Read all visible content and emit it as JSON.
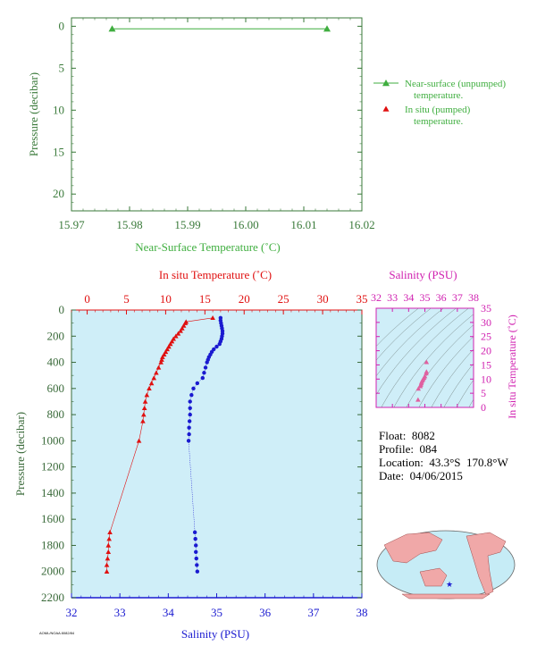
{
  "colors": {
    "top_axis": "#3a7a3a",
    "top_label": "#3fae3f",
    "temp": "#e01010",
    "salinity": "#1a1ad0",
    "magenta": "#d020b0",
    "ts_points": "#e060a0",
    "panel_bg": "#cfeef8",
    "main_axis": "#3a6a3a"
  },
  "metadata": {
    "float_label": "Float:",
    "float_value": "8082",
    "profile_label": "Profile:",
    "profile_value": "084",
    "location_label": "Location:",
    "location_value": "43.3°S  170.8°W",
    "date_label": "Date:",
    "date_value": "04/06/2015",
    "footer_code": "AOML/NOAA 8082/84"
  },
  "chart_data": [
    {
      "type": "line",
      "name": "near-surface",
      "xlabel": "Near-Surface Temperature (˚C)",
      "ylabel": "Pressure (decibar)",
      "xlim": [
        15.97,
        16.02
      ],
      "ylim": [
        22,
        -1
      ],
      "xticks": [
        "15.97",
        "15.98",
        "15.99",
        "16.00",
        "16.01",
        "16.02"
      ],
      "yticks": [
        "0",
        "5",
        "10",
        "15",
        "20"
      ],
      "series": [
        {
          "name": "Near-surface (unpumped) temperature.",
          "x": [
            15.977,
            16.014
          ],
          "y": [
            0.3,
            0.3
          ]
        }
      ],
      "legend": [
        {
          "line1": "Near-surface (unpumped)",
          "line2": "temperature."
        },
        {
          "line1": "In situ (pumped)",
          "line2": "temperature."
        }
      ]
    },
    {
      "type": "line",
      "name": "profile",
      "xlabel_top": "In situ Temperature (˚C)",
      "xlabel_bottom": "Salinity (PSU)",
      "ylabel": "Pressure (decibar)",
      "temp_lim": [
        -2,
        35
      ],
      "sal_lim": [
        32,
        38
      ],
      "ylim": [
        2200,
        0
      ],
      "temp_ticks": [
        "0",
        "5",
        "10",
        "15",
        "20",
        "25",
        "30",
        "35"
      ],
      "sal_ticks": [
        "32",
        "33",
        "34",
        "35",
        "36",
        "37",
        "38"
      ],
      "yticks": [
        "0",
        "200",
        "400",
        "600",
        "800",
        "1000",
        "1200",
        "1400",
        "1600",
        "1800",
        "2000",
        "2200"
      ],
      "series": [
        {
          "name": "In situ Temperature",
          "pressure": [
            60,
            90,
            100,
            120,
            140,
            160,
            180,
            200,
            220,
            240,
            260,
            280,
            300,
            320,
            340,
            360,
            380,
            400,
            440,
            480,
            520,
            560,
            600,
            650,
            700,
            750,
            800,
            850,
            1000,
            1700,
            1750,
            1800,
            1850,
            1900,
            1950,
            2000
          ],
          "values": [
            16.0,
            12.6,
            12.5,
            12.3,
            12.1,
            11.9,
            11.6,
            11.3,
            11.0,
            10.8,
            10.6,
            10.4,
            10.2,
            10.0,
            9.8,
            9.6,
            9.5,
            9.4,
            9.1,
            8.8,
            8.5,
            8.2,
            7.9,
            7.6,
            7.4,
            7.3,
            7.2,
            7.1,
            6.6,
            2.9,
            2.8,
            2.7,
            2.7,
            2.6,
            2.5,
            2.5
          ]
        },
        {
          "name": "Salinity",
          "pressure": [
            60,
            80,
            100,
            120,
            140,
            160,
            180,
            200,
            220,
            240,
            260,
            280,
            300,
            320,
            340,
            360,
            380,
            400,
            440,
            480,
            520,
            560,
            600,
            650,
            700,
            750,
            800,
            850,
            900,
            950,
            1000,
            1700,
            1750,
            1800,
            1850,
            1900,
            1950,
            2000
          ],
          "values": [
            35.08,
            35.08,
            35.09,
            35.1,
            35.11,
            35.12,
            35.12,
            35.11,
            35.1,
            35.08,
            35.06,
            35.0,
            34.94,
            34.9,
            34.87,
            34.84,
            34.82,
            34.8,
            34.77,
            34.74,
            34.71,
            34.6,
            34.52,
            34.48,
            34.45,
            34.45,
            34.45,
            34.44,
            34.43,
            34.43,
            34.42,
            34.55,
            34.56,
            34.57,
            34.57,
            34.58,
            34.59,
            34.6
          ]
        }
      ]
    },
    {
      "type": "scatter",
      "name": "T-S",
      "title": "Salinity (PSU)",
      "ylabel": "In situ Temperature (˚C)",
      "xlim": [
        32,
        38
      ],
      "ylim": [
        0,
        35
      ],
      "xticks": [
        "32",
        "33",
        "34",
        "35",
        "36",
        "37",
        "38"
      ],
      "yticks": [
        "0",
        "5",
        "10",
        "15",
        "20",
        "25",
        "30",
        "35"
      ],
      "x": [
        35.1,
        35.1,
        35.08,
        35.0,
        34.95,
        34.9,
        34.85,
        34.8,
        34.78,
        34.75,
        34.72,
        34.6,
        34.58
      ],
      "y": [
        16.0,
        12.6,
        12.0,
        11.0,
        10.5,
        10.0,
        9.5,
        9.0,
        8.5,
        8.0,
        7.5,
        6.6,
        2.7
      ]
    }
  ]
}
